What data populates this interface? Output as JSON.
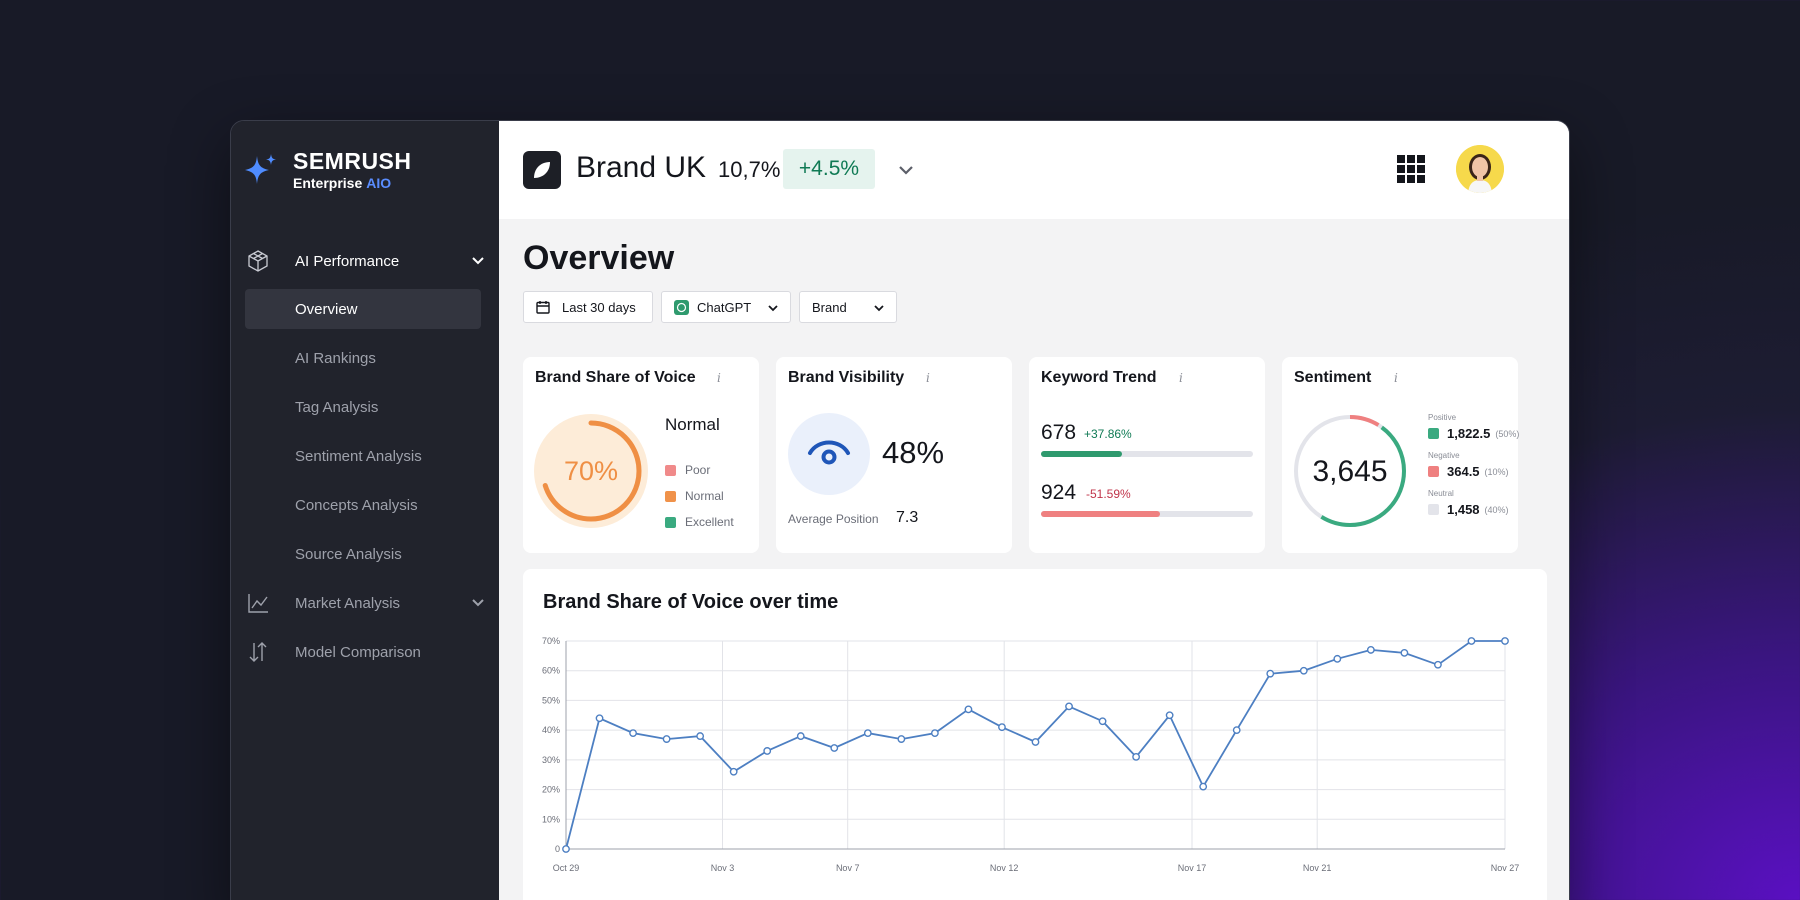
{
  "app": {
    "logo_title": "SEMRUSH",
    "logo_sub": "Enterprise",
    "logo_sub_accent": "AIO"
  },
  "sidebar": {
    "groups": [
      {
        "label": "AI Performance",
        "icon": "cube-icon"
      },
      {
        "label": "Market Analysis",
        "icon": "line-chart-icon"
      },
      {
        "label": "Model Comparison",
        "icon": "sort-arrows-icon"
      }
    ],
    "items": [
      {
        "label": "Overview",
        "active": true
      },
      {
        "label": "AI Rankings"
      },
      {
        "label": "Tag Analysis"
      },
      {
        "label": "Sentiment Analysis"
      },
      {
        "label": "Concepts Analysis"
      },
      {
        "label": "Source Analysis"
      }
    ]
  },
  "header": {
    "brand_name": "Brand UK",
    "brand_pct": "10,7%",
    "brand_delta": "+4.5%"
  },
  "page": {
    "title": "Overview",
    "filters": {
      "date": "Last 30 days",
      "model": "ChatGPT",
      "entity": "Brand"
    }
  },
  "cards": {
    "share_of_voice": {
      "title": "Brand Share of Voice",
      "value": "70%",
      "fraction": 0.7,
      "status": "Normal",
      "legend": [
        {
          "label": "Poor",
          "color": "#f08a8a"
        },
        {
          "label": "Normal",
          "color": "#f0924a"
        },
        {
          "label": "Excellent",
          "color": "#3aaa80"
        }
      ]
    },
    "visibility": {
      "title": "Brand Visibility",
      "value": "48%",
      "avg_label": "Average Position",
      "avg_value": "7.3"
    },
    "keyword_trend": {
      "title": "Keyword Trend",
      "rows": [
        {
          "value": "678",
          "delta": "+37.86%",
          "fraction": 0.38,
          "color": "#2f9a6e"
        },
        {
          "value": "924",
          "delta": "-51.59%",
          "fraction": 0.56,
          "color": "#ef8080"
        }
      ]
    },
    "sentiment": {
      "title": "Sentiment",
      "total": "3,645",
      "items": [
        {
          "label": "Positive",
          "value": "1,822.5",
          "pct": "(50%)",
          "color": "#3aaa80"
        },
        {
          "label": "Negative",
          "value": "364.5",
          "pct": "(10%)",
          "color": "#ef8080"
        },
        {
          "label": "Neutral",
          "value": "1,458",
          "pct": "(40%)",
          "color": "#e3e4ea"
        }
      ]
    }
  },
  "colors": {
    "accent_blue": "#4d7fc2",
    "positive": "#0f7a54",
    "negative": "#c0344a"
  },
  "chart_data": {
    "type": "line",
    "title": "Brand Share of Voice over time",
    "xlabel": "",
    "ylabel": "",
    "ylim": [
      0,
      70
    ],
    "yticks": [
      "0",
      "10%",
      "20%",
      "30%",
      "40%",
      "50%",
      "60%",
      "70%"
    ],
    "x_ticks": [
      {
        "label": "Oct 29",
        "index": 0
      },
      {
        "label": "Nov 3",
        "index": 5
      },
      {
        "label": "Nov 7",
        "index": 9
      },
      {
        "label": "Nov 12",
        "index": 14
      },
      {
        "label": "Nov 17",
        "index": 20
      },
      {
        "label": "Nov 21",
        "index": 24
      },
      {
        "label": "Nov 27",
        "index": 30
      }
    ],
    "grid": true,
    "series": [
      {
        "values": [
          0,
          44,
          39,
          37,
          38,
          26,
          33,
          38,
          34,
          39,
          37,
          39,
          47,
          41,
          36,
          48,
          43,
          31,
          45,
          21,
          40,
          59,
          60,
          64,
          67,
          66,
          62,
          70,
          70
        ]
      }
    ]
  }
}
